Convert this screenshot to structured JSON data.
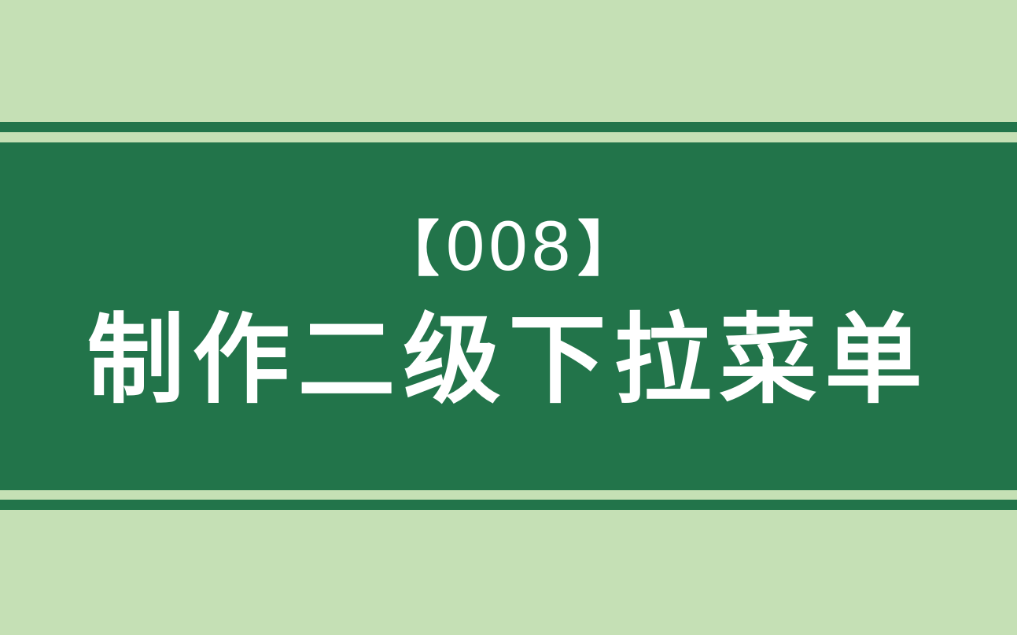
{
  "colors": {
    "background": "#c5e0b5",
    "band": "#22744a",
    "text": "#ffffff"
  },
  "cover": {
    "bracket_open": "【",
    "episode_number": "008",
    "bracket_close": "】",
    "title": "制作二级下拉菜单"
  }
}
